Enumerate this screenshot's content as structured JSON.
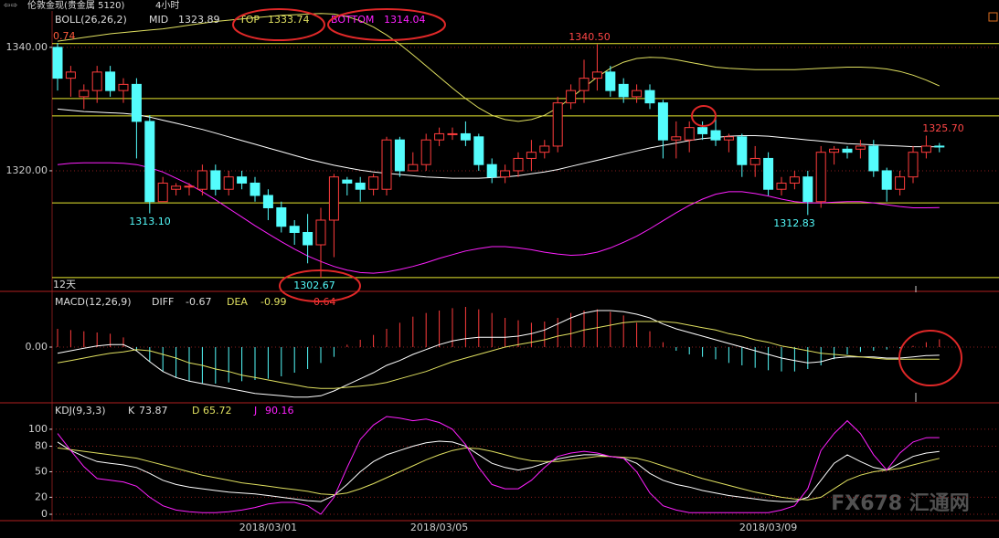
{
  "header": {
    "symbol": "伦敦金现(贵金属 5120)",
    "period": "4小时"
  },
  "watermark": "FX678 汇通网",
  "chart_data": [
    {
      "type": "candlestick",
      "title": "BOLL(26,26,2)",
      "up_color": "#ff3c3c",
      "down_color": "#54fcfc",
      "grid": true,
      "ylim": [
        1300.6,
        1345.9
      ],
      "yticks": [
        {
          "value": 1340,
          "label": "1340.00"
        },
        {
          "value": 1320,
          "label": "1320.00"
        }
      ],
      "hlines": [
        1340.6,
        1331.7,
        1328.9,
        1314.8,
        1302.7
      ],
      "hline_color": "#e8e830",
      "period_label": "12天",
      "annotations": [
        {
          "text": "0.74",
          "color": "#ff5a3c"
        },
        {
          "text": "1340.50",
          "color": "#ff4646"
        },
        {
          "text": "1313.10",
          "color": "#54fcfc"
        },
        {
          "text": "1302.67",
          "color": "#54fcfc"
        },
        {
          "text": "1312.83",
          "color": "#54fcfc"
        },
        {
          "text": "1325.70",
          "color": "#ff4646"
        }
      ],
      "open": [
        1340,
        1335,
        1332,
        1333,
        1336,
        1333,
        1334,
        1328,
        1315,
        1317,
        1317.5,
        1317,
        1320,
        1317,
        1319,
        1318,
        1316,
        1314,
        1311,
        1310,
        1308,
        1312,
        1318.5,
        1318,
        1317,
        1317,
        1325,
        1320,
        1321,
        1325,
        1326,
        1326,
        1325.5,
        1321,
        1319,
        1320,
        1322,
        1323,
        1324,
        1331,
        1333,
        1335,
        1336,
        1334,
        1332,
        1333,
        1331,
        1325,
        1325,
        1327,
        1326.5,
        1325,
        1325.5,
        1321,
        1322,
        1317,
        1318,
        1319,
        1315,
        1323,
        1323.5,
        1323.5,
        1324,
        1320,
        1317,
        1319,
        1323,
        1324
      ],
      "high": [
        1340.7,
        1337,
        1334,
        1337,
        1337,
        1335,
        1335,
        1329,
        1319,
        1318,
        1318,
        1321,
        1321,
        1320,
        1320,
        1319,
        1317,
        1315,
        1312,
        1313,
        1314,
        1319.5,
        1319,
        1319,
        1319.5,
        1325.5,
        1325.5,
        1323,
        1326,
        1327,
        1327,
        1328,
        1326,
        1322,
        1321,
        1323,
        1325,
        1325,
        1332,
        1334,
        1338,
        1340.5,
        1337,
        1335,
        1334,
        1334,
        1331.5,
        1328,
        1328,
        1328,
        1329,
        1326,
        1326,
        1324,
        1323,
        1319,
        1320,
        1320,
        1324,
        1324,
        1324,
        1325,
        1325,
        1320.5,
        1320,
        1324,
        1325.7,
        1324.5
      ],
      "low": [
        1333,
        1332,
        1330,
        1331,
        1332,
        1331,
        1322,
        1313.1,
        1315,
        1316,
        1316,
        1316,
        1316,
        1316,
        1317,
        1315,
        1312,
        1310,
        1308,
        1305,
        1302.67,
        1306,
        1316,
        1315,
        1316,
        1316,
        1319,
        1320,
        1320,
        1324,
        1325,
        1324,
        1320,
        1318,
        1318,
        1319,
        1320,
        1322,
        1323,
        1330,
        1331,
        1333,
        1332,
        1331,
        1331,
        1330,
        1322,
        1322,
        1323,
        1325,
        1324,
        1323,
        1319,
        1319,
        1316,
        1316,
        1317,
        1312.83,
        1314,
        1321,
        1322,
        1322,
        1319,
        1315,
        1316,
        1318,
        1322,
        1323
      ],
      "close": [
        1335,
        1336,
        1333,
        1336,
        1333,
        1334,
        1328,
        1315,
        1318,
        1317.5,
        1317.5,
        1320,
        1317,
        1319,
        1318,
        1316,
        1314,
        1311,
        1310,
        1308,
        1312,
        1319,
        1318,
        1317,
        1319,
        1325,
        1320,
        1321,
        1325,
        1326,
        1326,
        1325,
        1321,
        1319,
        1320,
        1322,
        1323,
        1324,
        1331,
        1333,
        1335,
        1336,
        1333,
        1332,
        1333,
        1331,
        1325,
        1325.5,
        1327,
        1326,
        1325,
        1325.5,
        1321,
        1322,
        1317,
        1318,
        1319,
        1315,
        1323,
        1323.5,
        1323,
        1324,
        1320,
        1317,
        1319,
        1323,
        1324,
        1323.89
      ],
      "series": [
        {
          "name": "MID",
          "color": "#ffffff",
          "values": [
            1330,
            1329.8,
            1329.6,
            1329.5,
            1329.4,
            1329.3,
            1329.1,
            1328.7,
            1328.2,
            1327.7,
            1327.2,
            1326.7,
            1326.1,
            1325.5,
            1324.9,
            1324.3,
            1323.7,
            1323.1,
            1322.5,
            1321.9,
            1321.4,
            1320.9,
            1320.5,
            1320.1,
            1319.8,
            1319.6,
            1319.4,
            1319.2,
            1319.0,
            1318.9,
            1318.8,
            1318.8,
            1318.8,
            1318.9,
            1319.0,
            1319.2,
            1319.5,
            1319.8,
            1320.2,
            1320.7,
            1321.2,
            1321.7,
            1322.2,
            1322.7,
            1323.2,
            1323.7,
            1324.1,
            1324.5,
            1324.9,
            1325.2,
            1325.4,
            1325.6,
            1325.7,
            1325.7,
            1325.6,
            1325.4,
            1325.2,
            1325.0,
            1324.8,
            1324.6,
            1324.4,
            1324.3,
            1324.2,
            1324.1,
            1324.0,
            1323.9,
            1323.9,
            1323.89
          ]
        },
        {
          "name": "TOP",
          "color": "#e0e060",
          "values": [
            1341,
            1341.3,
            1341.6,
            1341.9,
            1342.2,
            1342.4,
            1342.6,
            1342.8,
            1343.0,
            1343.3,
            1343.6,
            1343.9,
            1344.2,
            1344.4,
            1344.6,
            1344.8,
            1345.0,
            1345.2,
            1345.3,
            1345.4,
            1345.5,
            1345.4,
            1345.0,
            1344.3,
            1343.3,
            1342.0,
            1340.5,
            1338.8,
            1337.0,
            1335.2,
            1333.4,
            1331.7,
            1330.2,
            1329.0,
            1328.3,
            1328.0,
            1328.3,
            1329.0,
            1330.2,
            1331.8,
            1333.5,
            1335.2,
            1336.6,
            1337.6,
            1338.2,
            1338.4,
            1338.3,
            1338.0,
            1337.6,
            1337.2,
            1336.8,
            1336.6,
            1336.5,
            1336.4,
            1336.4,
            1336.4,
            1336.4,
            1336.5,
            1336.6,
            1336.7,
            1336.8,
            1336.8,
            1336.7,
            1336.5,
            1336.1,
            1335.5,
            1334.7,
            1333.74
          ]
        },
        {
          "name": "BOTTOM",
          "color": "#ff20ff",
          "values": [
            1321,
            1321.2,
            1321.3,
            1321.3,
            1321.3,
            1321.2,
            1321,
            1320.5,
            1319.8,
            1318.8,
            1317.8,
            1316.6,
            1315.3,
            1313.9,
            1312.5,
            1311.1,
            1309.8,
            1308.5,
            1307.3,
            1306.2,
            1305.3,
            1304.5,
            1303.9,
            1303.5,
            1303.4,
            1303.6,
            1304.0,
            1304.5,
            1305.1,
            1305.8,
            1306.4,
            1307.0,
            1307.4,
            1307.7,
            1307.7,
            1307.5,
            1307.2,
            1306.8,
            1306.5,
            1306.3,
            1306.4,
            1306.8,
            1307.5,
            1308.4,
            1309.4,
            1310.6,
            1311.9,
            1313.2,
            1314.4,
            1315.4,
            1316.2,
            1316.6,
            1316.6,
            1316.3,
            1315.9,
            1315.4,
            1315.0,
            1314.8,
            1314.8,
            1314.9,
            1315.0,
            1315.0,
            1314.8,
            1314.5,
            1314.2,
            1314.0,
            1314.0,
            1314.04
          ]
        }
      ]
    },
    {
      "type": "macd",
      "title": "MACD(12,26,9)",
      "grid": true,
      "ylim": [
        -4.5,
        4.5
      ],
      "yticks": [
        {
          "value": 0,
          "label": "0.00"
        }
      ],
      "up_color": "#ff3c3c",
      "down_color": "#54fcfc",
      "series": [
        {
          "name": "DIFF",
          "color": "#ffffff",
          "values": [
            -0.5,
            -0.3,
            -0.1,
            0.1,
            0.2,
            0.2,
            -0.3,
            -1.2,
            -2.0,
            -2.5,
            -2.8,
            -3.0,
            -3.2,
            -3.4,
            -3.6,
            -3.8,
            -3.9,
            -4.0,
            -4.1,
            -4.1,
            -4.0,
            -3.6,
            -3.1,
            -2.6,
            -2.1,
            -1.5,
            -1.1,
            -0.6,
            -0.2,
            0.2,
            0.5,
            0.7,
            0.8,
            0.8,
            0.8,
            0.9,
            1.1,
            1.4,
            1.9,
            2.4,
            2.8,
            3.0,
            3.0,
            2.9,
            2.7,
            2.4,
            1.9,
            1.5,
            1.2,
            0.9,
            0.6,
            0.3,
            0.0,
            -0.3,
            -0.6,
            -0.9,
            -1.1,
            -1.3,
            -1.2,
            -0.9,
            -0.8,
            -0.8,
            -0.8,
            -0.9,
            -0.9,
            -0.8,
            -0.7,
            -0.67
          ]
        },
        {
          "name": "DEA",
          "color": "#e0e060",
          "values": [
            -1.3,
            -1.1,
            -0.9,
            -0.7,
            -0.5,
            -0.4,
            -0.2,
            -0.3,
            -0.6,
            -0.9,
            -1.3,
            -1.5,
            -1.8,
            -2.0,
            -2.3,
            -2.5,
            -2.7,
            -2.9,
            -3.1,
            -3.3,
            -3.4,
            -3.4,
            -3.3,
            -3.2,
            -3.1,
            -2.9,
            -2.6,
            -2.3,
            -2.0,
            -1.6,
            -1.2,
            -0.9,
            -0.6,
            -0.3,
            0.0,
            0.2,
            0.4,
            0.6,
            0.9,
            1.1,
            1.4,
            1.6,
            1.8,
            2.0,
            2.1,
            2.1,
            2.1,
            2.0,
            1.8,
            1.6,
            1.4,
            1.1,
            0.9,
            0.6,
            0.4,
            0.1,
            -0.1,
            -0.3,
            -0.5,
            -0.6,
            -0.7,
            -0.8,
            -0.9,
            -1.0,
            -1.0,
            -1.0,
            -1.0,
            -0.99
          ]
        },
        {
          "name": "MACD",
          "color": "#ff3c3c",
          "values": [
            1.5,
            1.4,
            1.3,
            1.2,
            1.1,
            0.8,
            -0.3,
            -1.2,
            -2.0,
            -2.5,
            -2.8,
            -3.0,
            -3.0,
            -2.9,
            -2.8,
            -2.7,
            -2.6,
            -2.4,
            -2.1,
            -1.8,
            -1.3,
            -0.8,
            0.2,
            0.6,
            1.0,
            1.5,
            2.0,
            2.5,
            2.8,
            3.0,
            3.2,
            3.3,
            3.1,
            2.8,
            2.4,
            2.2,
            2.0,
            2.1,
            2.4,
            2.8,
            3.0,
            3.1,
            2.9,
            2.6,
            2.0,
            1.3,
            0.4,
            -0.3,
            -0.6,
            -0.8,
            -1.0,
            -1.3,
            -1.5,
            -1.7,
            -1.9,
            -2.0,
            -2.0,
            -1.8,
            -1.5,
            -1.0,
            -0.6,
            -0.4,
            -0.3,
            -0.2,
            -0.1,
            0.1,
            0.4,
            0.64
          ]
        }
      ]
    },
    {
      "type": "kdj",
      "title": "KDJ(9,3,3)",
      "grid": true,
      "ylim": [
        -7.5,
        130
      ],
      "yticks": [
        0,
        20,
        50,
        80,
        100
      ],
      "categories": [
        null,
        null,
        null,
        null,
        null,
        null,
        null,
        null,
        null,
        null,
        null,
        null,
        null,
        null,
        null,
        null,
        "2018/03/01",
        null,
        null,
        null,
        null,
        null,
        null,
        null,
        null,
        null,
        null,
        null,
        null,
        "2018/03/05",
        null,
        null,
        null,
        null,
        null,
        null,
        null,
        null,
        null,
        null,
        null,
        null,
        null,
        null,
        null,
        null,
        null,
        null,
        null,
        null,
        null,
        null,
        null,
        null,
        "2018/03/09",
        null,
        null,
        null,
        null,
        null,
        null,
        null,
        null,
        null,
        null,
        null,
        null,
        null
      ],
      "series": [
        {
          "name": "K",
          "color": "#ffffff",
          "values": [
            85,
            75,
            68,
            62,
            60,
            58,
            55,
            48,
            40,
            35,
            32,
            30,
            28,
            26,
            25,
            24,
            22,
            20,
            18,
            16,
            15,
            22,
            35,
            50,
            62,
            70,
            75,
            80,
            84,
            86,
            85,
            80,
            70,
            60,
            55,
            52,
            55,
            60,
            65,
            68,
            70,
            70,
            68,
            66,
            60,
            48,
            40,
            35,
            32,
            28,
            25,
            22,
            20,
            18,
            16,
            15,
            15,
            20,
            40,
            60,
            70,
            62,
            55,
            52,
            60,
            68,
            72,
            73.87
          ]
        },
        {
          "name": "D",
          "color": "#e0e060",
          "values": [
            78,
            76,
            74,
            72,
            70,
            68,
            66,
            62,
            58,
            54,
            50,
            46,
            43,
            40,
            37,
            35,
            33,
            31,
            29,
            27,
            24,
            23,
            25,
            30,
            36,
            43,
            50,
            57,
            64,
            70,
            75,
            78,
            77,
            74,
            70,
            66,
            63,
            62,
            62,
            64,
            66,
            68,
            68,
            67,
            66,
            62,
            57,
            52,
            47,
            42,
            38,
            34,
            30,
            26,
            23,
            20,
            18,
            17,
            20,
            30,
            40,
            46,
            50,
            52,
            54,
            58,
            62,
            65.72
          ]
        },
        {
          "name": "J",
          "color": "#ff20ff",
          "values": [
            95,
            75,
            56,
            42,
            40,
            38,
            33,
            20,
            10,
            5,
            3,
            2,
            2,
            3,
            5,
            8,
            12,
            14,
            14,
            10,
            0,
            20,
            55,
            88,
            105,
            115,
            113,
            110,
            112,
            108,
            100,
            82,
            55,
            35,
            30,
            30,
            40,
            55,
            68,
            72,
            74,
            72,
            68,
            66,
            50,
            25,
            10,
            5,
            2,
            2,
            2,
            2,
            2,
            2,
            2,
            5,
            10,
            30,
            75,
            95,
            110,
            95,
            70,
            52,
            72,
            85,
            90,
            90.16
          ]
        }
      ]
    }
  ]
}
